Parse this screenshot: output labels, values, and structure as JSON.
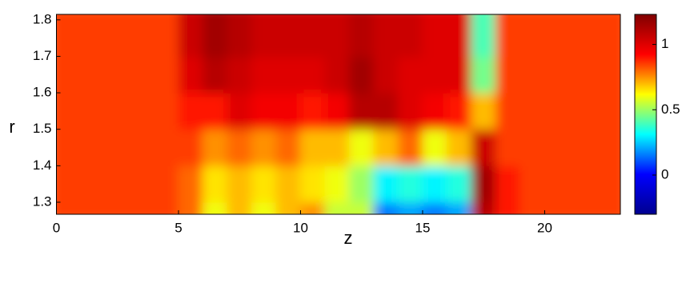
{
  "chart_data": {
    "type": "heatmap",
    "xlabel": "z",
    "ylabel": "r",
    "xlim": [
      0,
      23.1
    ],
    "xticks": [
      0,
      5,
      10,
      15,
      20
    ],
    "ylim": [
      1.267,
      1.815
    ],
    "yticks": [
      1.3,
      1.4,
      1.5,
      1.6,
      1.7,
      1.8
    ],
    "z_edges": [
      0,
      1,
      2,
      3,
      4,
      5,
      6,
      7,
      8,
      9,
      10,
      11,
      12,
      13,
      14,
      15,
      16,
      17,
      18,
      19,
      20,
      21,
      22,
      23.1
    ],
    "r_edges": [
      1.267,
      1.3,
      1.4,
      1.5,
      1.6,
      1.7,
      1.815
    ],
    "values": [
      [
        0.85,
        0.85,
        0.85,
        0.85,
        0.85,
        0.8,
        0.6,
        0.7,
        0.6,
        0.7,
        0.75,
        0.55,
        0.55,
        0.15,
        0.2,
        0.15,
        0.2,
        1.1,
        0.9,
        0.85,
        0.85,
        0.85,
        0.85
      ],
      [
        0.85,
        0.85,
        0.85,
        0.85,
        0.85,
        0.8,
        0.65,
        0.7,
        0.65,
        0.7,
        0.65,
        0.6,
        0.5,
        0.3,
        0.35,
        0.3,
        0.35,
        1.15,
        0.9,
        0.85,
        0.85,
        0.85,
        0.85
      ],
      [
        0.85,
        0.85,
        0.85,
        0.85,
        0.85,
        0.85,
        0.75,
        0.8,
        0.75,
        0.8,
        0.7,
        0.7,
        0.6,
        0.7,
        0.8,
        0.6,
        0.7,
        1.05,
        0.85,
        0.85,
        0.85,
        0.85,
        0.85
      ],
      [
        0.85,
        0.85,
        0.85,
        0.85,
        0.85,
        0.9,
        0.9,
        1.0,
        0.95,
        0.95,
        0.9,
        0.95,
        1.1,
        1.1,
        1.0,
        0.95,
        0.9,
        0.7,
        0.85,
        0.85,
        0.85,
        0.85,
        0.85
      ],
      [
        0.85,
        0.85,
        0.85,
        0.85,
        0.85,
        1.0,
        1.1,
        1.05,
        1.0,
        1.0,
        1.0,
        1.05,
        1.15,
        1.05,
        1.0,
        1.0,
        1.0,
        0.45,
        0.85,
        0.85,
        0.85,
        0.85,
        0.85
      ],
      [
        0.85,
        0.85,
        0.85,
        0.85,
        0.85,
        1.05,
        1.15,
        1.1,
        1.05,
        1.05,
        1.05,
        1.05,
        1.1,
        1.05,
        1.05,
        1.0,
        1.0,
        0.4,
        0.85,
        0.85,
        0.85,
        0.85,
        0.85
      ]
    ],
    "clim": [
      -0.3,
      1.23
    ],
    "cticks": [
      0,
      0.5,
      1
    ],
    "colormap": [
      "#00008f",
      "#0000ff",
      "#00ffff",
      "#ffff00",
      "#ff0000",
      "#800000"
    ]
  }
}
